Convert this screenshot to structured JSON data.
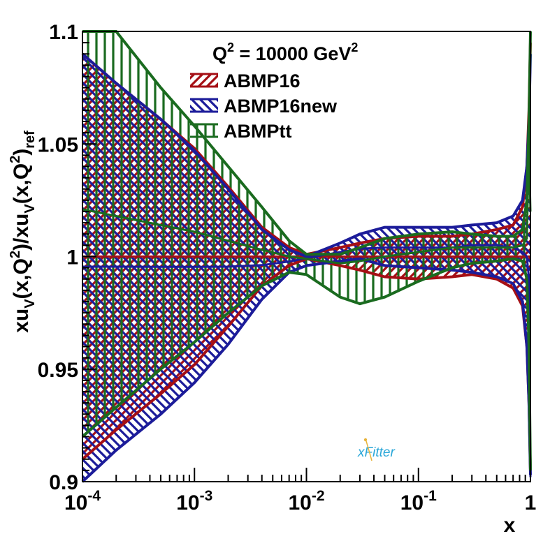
{
  "chart_data": {
    "type": "line",
    "title": "Q² = 10000 GeV²",
    "title_parts": {
      "base": "Q",
      "exp": "2",
      "middle": " = 10000 GeV",
      "unit_exp": "2"
    },
    "xlabel": "x",
    "ylabel": "xu_V(x,Q²)/xu_V(x,Q²)_ref",
    "ylabel_parts": [
      "xu",
      "V",
      "(x,Q",
      "2",
      ")/xu",
      "V",
      "(x,Q",
      "2",
      ")",
      "ref"
    ],
    "x_scale": "log",
    "xlim": [
      0.0001,
      1
    ],
    "ylim": [
      0.9,
      1.1
    ],
    "x_ticks": [
      {
        "value": 0.0001,
        "base": "10",
        "exp": "-4"
      },
      {
        "value": 0.001,
        "base": "10",
        "exp": "-3"
      },
      {
        "value": 0.01,
        "base": "10",
        "exp": "-2"
      },
      {
        "value": 0.1,
        "base": "10",
        "exp": "-1"
      },
      {
        "value": 1,
        "base": "1",
        "exp": ""
      }
    ],
    "y_ticks": [
      {
        "value": 0.9,
        "label": "0.9"
      },
      {
        "value": 0.95,
        "label": "0.95"
      },
      {
        "value": 1.0,
        "label": "1"
      },
      {
        "value": 1.05,
        "label": "1.05"
      },
      {
        "value": 1.1,
        "label": "1.1"
      }
    ],
    "legend_position": "top-center",
    "x": [
      0.0001,
      0.0002,
      0.0005,
      0.001,
      0.002,
      0.004,
      0.007,
      0.01,
      0.02,
      0.03,
      0.05,
      0.1,
      0.2,
      0.3,
      0.5,
      0.7,
      0.85,
      0.93,
      0.97,
      1.0
    ],
    "series": [
      {
        "name": "ABMP16",
        "color": "#a50f15",
        "hatch": "diagonal-right",
        "central": [
          1.0,
          1.0,
          1.0,
          1.0,
          1.0,
          1.0,
          1.0,
          1.0,
          1.0,
          1.0,
          1.0,
          1.0,
          1.0,
          1.0,
          1.0,
          1.0,
          1.0,
          1.0,
          1.0,
          1.0
        ],
        "upper": [
          1.09,
          1.077,
          1.061,
          1.048,
          1.031,
          1.013,
          1.004,
          1.001,
          1.004,
          1.006,
          1.008,
          1.009,
          1.009,
          1.01,
          1.012,
          1.014,
          1.022,
          1.04,
          1.065,
          1.095
        ],
        "lower": [
          0.91,
          0.923,
          0.939,
          0.952,
          0.969,
          0.987,
          0.996,
          0.999,
          0.996,
          0.994,
          0.991,
          0.99,
          0.991,
          0.992,
          0.99,
          0.986,
          0.978,
          0.96,
          0.935,
          0.905
        ]
      },
      {
        "name": "ABMP16new",
        "color": "#1c1c9a",
        "hatch": "diagonal-left",
        "central": [
          0.9955,
          0.9955,
          0.9954,
          0.9954,
          0.9955,
          0.9962,
          0.9978,
          0.9993,
          1.002,
          1.0035,
          1.004,
          1.004,
          1.004,
          1.005,
          1.005,
          1.004,
          1.002,
          1.0,
          0.99,
          0.902
        ],
        "upper": [
          1.09,
          1.077,
          1.061,
          1.047,
          1.03,
          1.012,
          1.003,
          1.0,
          1.006,
          1.01,
          1.013,
          1.013,
          1.013,
          1.014,
          1.015,
          1.018,
          1.025,
          1.04,
          1.06,
          1.09
        ],
        "lower": [
          0.9,
          0.914,
          0.93,
          0.944,
          0.961,
          0.981,
          0.993,
          0.996,
          0.998,
          0.999,
          0.996,
          0.995,
          0.994,
          0.993,
          0.991,
          0.988,
          0.98,
          0.96,
          0.935,
          0.903
        ]
      },
      {
        "name": "ABMPtt",
        "color": "#1a6b1f",
        "hatch": "vertical",
        "central": [
          1.021,
          1.018,
          1.014,
          1.011,
          1.007,
          1.003,
          1.0,
          0.999,
          0.997,
          0.998,
          1.0,
          1.002,
          1.004,
          1.004,
          1.004,
          1.004,
          1.005,
          1.008,
          1.05,
          1.02
        ],
        "upper": [
          1.1,
          1.1,
          1.075,
          1.058,
          1.04,
          1.022,
          1.007,
          1.001,
          1.001,
          1.004,
          1.008,
          1.01,
          1.011,
          1.01,
          1.009,
          1.009,
          1.012,
          1.025,
          1.06,
          1.1
        ],
        "lower": [
          0.92,
          0.933,
          0.95,
          0.962,
          0.975,
          0.987,
          0.993,
          0.992,
          0.982,
          0.979,
          0.982,
          0.989,
          0.995,
          0.997,
          0.998,
          0.999,
          0.998,
          0.99,
          0.96,
          0.905
        ]
      }
    ],
    "logo_text": "xFitter"
  }
}
